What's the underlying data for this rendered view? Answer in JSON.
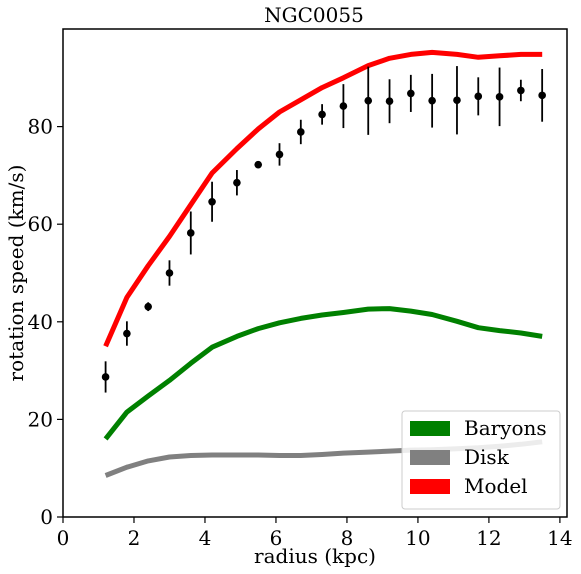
{
  "chart_data": {
    "type": "line",
    "title": "NGC0055",
    "xlabel": "radius (kpc)",
    "ylabel": "rotation speed (km/s)",
    "xlim": [
      0,
      14.2
    ],
    "ylim": [
      0,
      100
    ],
    "xticks": [
      0,
      2,
      4,
      6,
      8,
      10,
      12,
      14
    ],
    "yticks": [
      0,
      20,
      40,
      60,
      80
    ],
    "grid": false,
    "legend_position": "lower-right",
    "x": [
      1.2,
      1.8,
      2.4,
      3.0,
      3.6,
      4.2,
      4.9,
      5.5,
      6.1,
      6.7,
      7.3,
      7.9,
      8.6,
      9.2,
      9.8,
      10.4,
      11.1,
      11.7,
      12.3,
      12.9,
      13.5
    ],
    "series": [
      {
        "name": "Baryons",
        "color": "#008000",
        "values": [
          16,
          21.5,
          24.8,
          28,
          31.5,
          34.8,
          37,
          38.6,
          39.8,
          40.7,
          41.4,
          41.9,
          42.6,
          42.7,
          42.2,
          41.5,
          40.1,
          38.8,
          38.2,
          37.7,
          37
        ]
      },
      {
        "name": "Disk",
        "color": "#808080",
        "values": [
          8.5,
          10.2,
          11.5,
          12.3,
          12.6,
          12.7,
          12.7,
          12.7,
          12.6,
          12.6,
          12.8,
          13.1,
          13.3,
          13.5,
          13.7,
          13.8,
          14,
          14.2,
          14.5,
          14.9,
          15.4
        ]
      },
      {
        "name": "Model",
        "color": "#ff0000",
        "values": [
          35,
          45,
          51.5,
          57.5,
          64,
          70.5,
          75.5,
          79.5,
          83,
          85.5,
          88,
          90,
          92.5,
          94,
          94.8,
          95.2,
          94.8,
          94.2,
          94.5,
          94.8,
          94.8
        ]
      }
    ],
    "observed": {
      "color": "#000000",
      "values": [
        28.7,
        37.6,
        43.1,
        50,
        58.2,
        64.6,
        68.5,
        72.2,
        74.3,
        78.9,
        82.5,
        84.2,
        85.3,
        85.2,
        86.8,
        85.3,
        85.4,
        86.2,
        86.1,
        87.4,
        86.4
      ],
      "errors": [
        3.2,
        2.5,
        0.9,
        2.6,
        4.4,
        4.1,
        2.6,
        0.6,
        2.3,
        2.5,
        2.1,
        4.5,
        7,
        4.5,
        3.8,
        5.5,
        7,
        3.9,
        6,
        2.2,
        5.4
      ]
    }
  }
}
